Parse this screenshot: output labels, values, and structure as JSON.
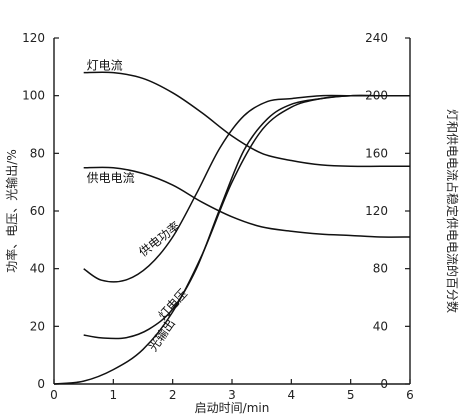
{
  "chart_data": {
    "type": "line",
    "xlabel": "启动时间/min",
    "ylabel_left": "功率、电压、光输出/%",
    "ylabel_right": "灯和供电电流占稳定供电电流的百分数",
    "x_ticks": [
      "0",
      "1",
      "2",
      "3",
      "4",
      "5",
      "6"
    ],
    "y_left_ticks": [
      "0",
      "20",
      "40",
      "60",
      "80",
      "100",
      "120"
    ],
    "y_right_ticks": [
      "0",
      "40",
      "80",
      "120",
      "160",
      "200",
      "240"
    ],
    "xlim": [
      0,
      6
    ],
    "ylim_left": [
      0,
      120
    ],
    "ylim_right": [
      0,
      240
    ],
    "grid": false,
    "series": [
      {
        "name": "灯电流",
        "axis": "right",
        "x": [
          0.5,
          1.0,
          1.5,
          2.0,
          2.5,
          3.0,
          3.5,
          4.0,
          4.5,
          5.0,
          5.5,
          6.0
        ],
        "y": [
          216,
          216,
          212,
          202,
          188,
          172,
          160,
          155,
          152,
          151,
          151,
          151
        ]
      },
      {
        "name": "供电电流",
        "axis": "right",
        "x": [
          0.5,
          1.0,
          1.5,
          2.0,
          2.5,
          3.0,
          3.5,
          4.0,
          4.5,
          5.0,
          5.5,
          6.0
        ],
        "y": [
          150,
          150,
          146,
          138,
          126,
          116,
          109,
          106,
          104,
          103,
          102,
          102
        ]
      },
      {
        "name": "供电功率",
        "axis": "left",
        "x": [
          0.5,
          0.8,
          1.2,
          1.6,
          2.0,
          2.4,
          2.8,
          3.2,
          3.6,
          4.0,
          4.5,
          5.0,
          5.5,
          6.0
        ],
        "y": [
          40,
          36,
          36,
          41,
          51,
          66,
          82,
          93,
          98,
          99,
          100,
          100,
          100,
          100
        ]
      },
      {
        "name": "灯电压",
        "axis": "left",
        "x": [
          0.5,
          0.8,
          1.2,
          1.6,
          2.0,
          2.4,
          2.8,
          3.2,
          3.6,
          4.0,
          4.5,
          5.0,
          5.5,
          6.0
        ],
        "y": [
          17,
          16,
          16,
          19,
          26,
          40,
          61,
          81,
          92,
          97,
          99,
          100,
          100,
          100
        ]
      },
      {
        "name": "光输出",
        "axis": "left",
        "x": [
          0.0,
          0.5,
          1.0,
          1.5,
          2.0,
          2.5,
          3.0,
          3.5,
          4.0,
          4.5,
          5.0,
          5.5,
          6.0
        ],
        "y": [
          0,
          1,
          5,
          12,
          25,
          45,
          70,
          88,
          96,
          99,
          100,
          100,
          100
        ]
      }
    ],
    "annotations": [
      {
        "text": "灯电流",
        "x": 0.55,
        "y_left": 109
      },
      {
        "text": "供电电流",
        "x": 0.55,
        "y_left": 70
      },
      {
        "text": "供电功率",
        "x": 1.5,
        "y_left": 44
      },
      {
        "text": "灯电压",
        "x": 1.85,
        "y_left": 22
      },
      {
        "text": "光输出",
        "x": 1.7,
        "y_left": 11
      }
    ]
  }
}
